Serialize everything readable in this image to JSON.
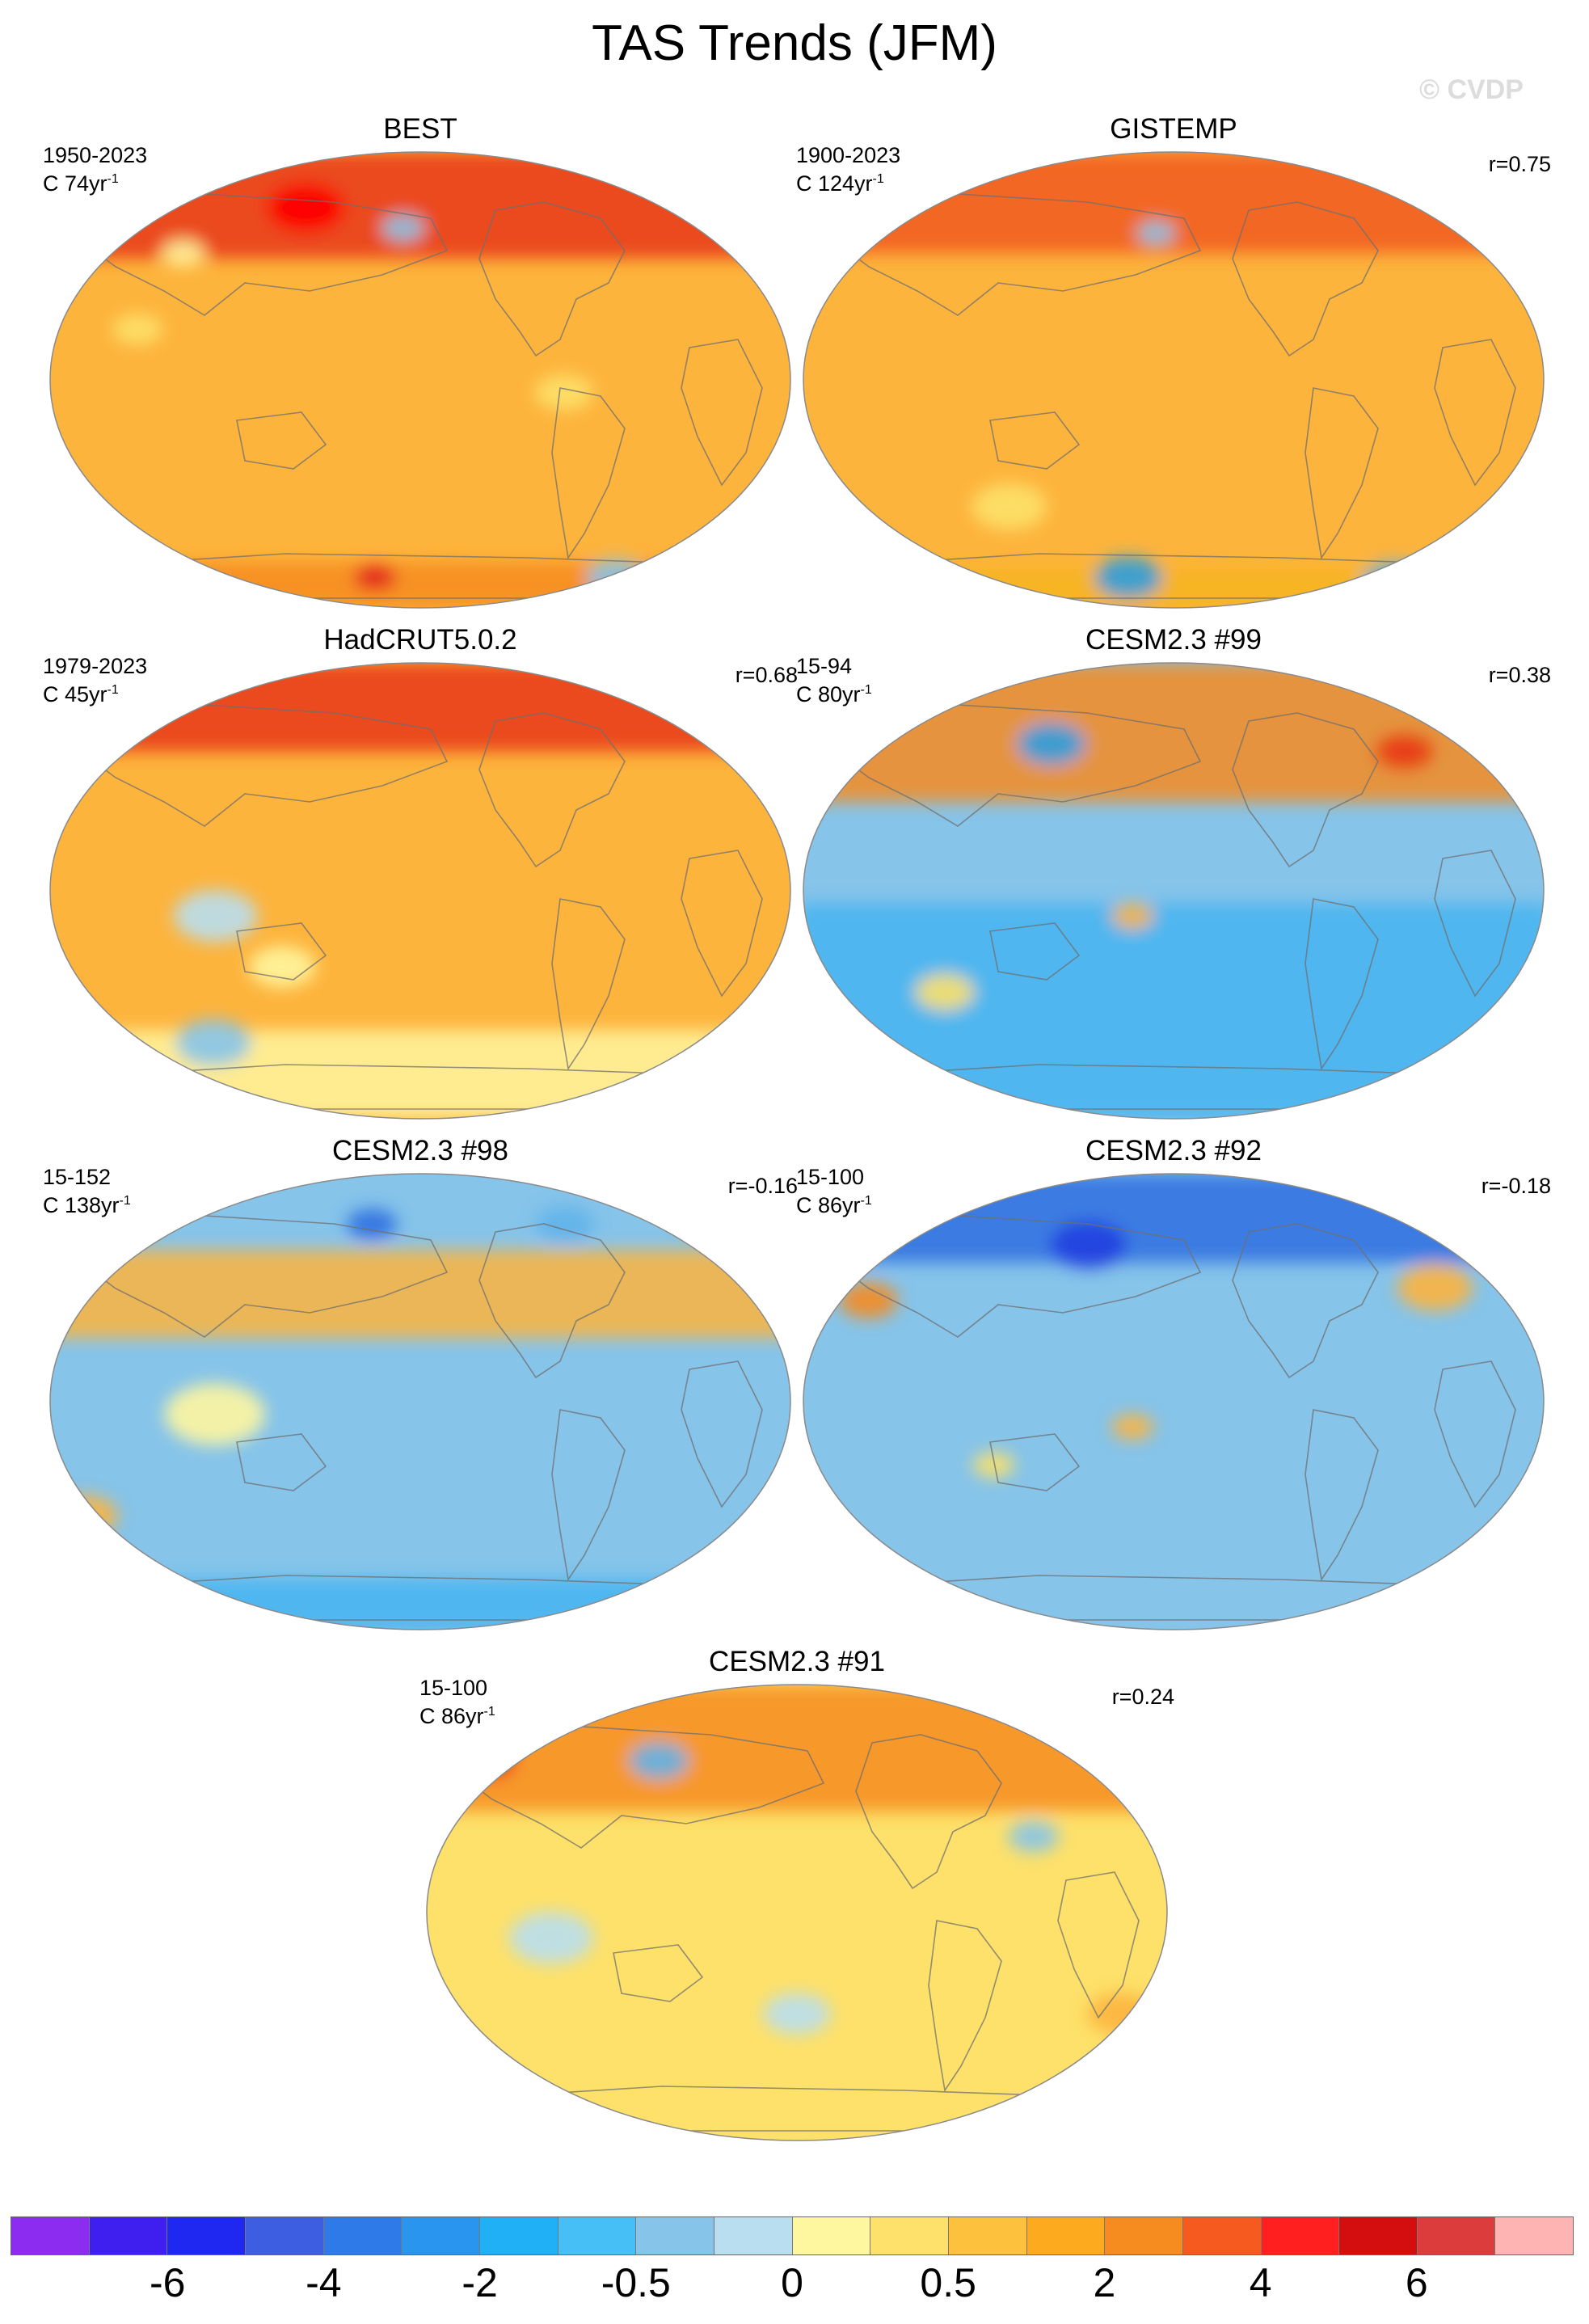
{
  "title": "TAS Trends (JFM)",
  "watermark": "© CVDP",
  "colors": {
    "coastline": "#6f6f6f",
    "map_outline": "#8a8a8a",
    "missing": "#ffffff"
  },
  "panels": [
    {
      "title": "BEST",
      "years": "1950-2023",
      "units": "C 74yr",
      "units_sup": "-1",
      "corr": "",
      "regime": "warm",
      "features": [
        {
          "type": "band",
          "lat_min": 48,
          "lat_max": 90,
          "color": "#e8371a"
        },
        {
          "type": "blob",
          "lon": -100,
          "lat": 68,
          "r": 18,
          "color": "#ff0000"
        },
        {
          "type": "blob",
          "lon": -40,
          "lat": 60,
          "r": 10,
          "color": "#86c4ea"
        },
        {
          "type": "blob",
          "lon": -160,
          "lat": 50,
          "r": 10,
          "color": "#fff6a0"
        },
        {
          "type": "blob",
          "lon": -170,
          "lat": 20,
          "r": 12,
          "color": "#fde16a"
        },
        {
          "type": "blob",
          "lon": 40,
          "lat": -5,
          "r": 14,
          "color": "#fde16a"
        },
        {
          "type": "band",
          "lat_min": -90,
          "lat_max": -72,
          "color": "#f68b1f"
        },
        {
          "type": "blob",
          "lon": -60,
          "lat": -78,
          "r": 10,
          "color": "#e21f1f"
        },
        {
          "type": "blob",
          "lon": 100,
          "lat": -78,
          "r": 14,
          "color": "#86c4ea"
        }
      ]
    },
    {
      "title": "GISTEMP",
      "years": "1900-2023",
      "units": "C 124yr",
      "units_sup": "-1",
      "corr": "r=0.75",
      "regime": "warm",
      "features": [
        {
          "type": "band",
          "lat_min": 50,
          "lat_max": 90,
          "color": "#f05a1e"
        },
        {
          "type": "blob",
          "lon": -40,
          "lat": 58,
          "r": 9,
          "color": "#86c4ea"
        },
        {
          "type": "blob",
          "lon": -120,
          "lat": -50,
          "r": 18,
          "color": "#fde16a"
        },
        {
          "type": "band",
          "lat_min": -90,
          "lat_max": -74,
          "color": "#f6b41f"
        },
        {
          "type": "blob",
          "lon": -60,
          "lat": -78,
          "r": 16,
          "color": "#2e9fe0"
        },
        {
          "type": "blob",
          "lon": 120,
          "lat": -80,
          "r": 16,
          "color": "#5fb2ea"
        }
      ]
    },
    {
      "title": "HadCRUT5.0.2",
      "years": "1979-2023",
      "units": "C 45yr",
      "units_sup": "-1",
      "corr": "r=0.68",
      "regime": "warm",
      "features": [
        {
          "type": "band",
          "lat_min": 55,
          "lat_max": 90,
          "color": "#e8371a"
        },
        {
          "type": "blob",
          "lon": -130,
          "lat": -10,
          "r": 20,
          "color": "#b8def0"
        },
        {
          "type": "blob",
          "lon": -100,
          "lat": -30,
          "r": 16,
          "color": "#fff6a0"
        },
        {
          "type": "band",
          "lat_min": -90,
          "lat_max": -55,
          "color": "#fff6a0"
        },
        {
          "type": "blob",
          "lon": -150,
          "lat": -60,
          "r": 18,
          "color": "#86c4ea"
        }
      ]
    },
    {
      "title": "CESM2.3 #99",
      "years": "15-94",
      "units": "C 80yr",
      "units_sup": "-1",
      "corr": "r=0.38",
      "regime": "mixed",
      "features": [
        {
          "type": "band",
          "lat_min": 35,
          "lat_max": 90,
          "color": "#f68b1f"
        },
        {
          "type": "band",
          "lat_min": -90,
          "lat_max": -5,
          "color": "#45b4f0"
        },
        {
          "type": "blob",
          "lon": -100,
          "lat": 58,
          "r": 16,
          "color": "#2e9fe0"
        },
        {
          "type": "blob",
          "lon": 100,
          "lat": 55,
          "r": 14,
          "color": "#e8371a"
        },
        {
          "type": "blob",
          "lon": -150,
          "lat": -40,
          "r": 14,
          "color": "#fde16a"
        },
        {
          "type": "blob",
          "lon": -50,
          "lat": -10,
          "r": 10,
          "color": "#fdb43d"
        }
      ]
    },
    {
      "title": "CESM2.3 #98",
      "years": "15-152",
      "units": "C 138yr",
      "units_sup": "-1",
      "corr": "r=-0.16",
      "regime": "cool",
      "features": [
        {
          "type": "band",
          "lat_min": 25,
          "lat_max": 60,
          "color": "#fdb43d"
        },
        {
          "type": "blob",
          "lon": 60,
          "lat": 70,
          "r": 14,
          "color": "#5fb2ea"
        },
        {
          "type": "blob",
          "lon": -60,
          "lat": 70,
          "r": 12,
          "color": "#2e6fe0"
        },
        {
          "type": "blob",
          "lon": -130,
          "lat": -5,
          "r": 24,
          "color": "#fff6a0"
        },
        {
          "type": "blob",
          "lon": 150,
          "lat": -45,
          "r": 16,
          "color": "#fdb43d"
        },
        {
          "type": "band",
          "lat_min": -90,
          "lat_max": -70,
          "color": "#45b4f0"
        }
      ]
    },
    {
      "title": "CESM2.3 #92",
      "years": "15-100",
      "units": "C 86yr",
      "units_sup": "-1",
      "corr": "r=-0.18",
      "regime": "cool",
      "features": [
        {
          "type": "band",
          "lat_min": 55,
          "lat_max": 90,
          "color": "#2e6fe0"
        },
        {
          "type": "blob",
          "lon": -80,
          "lat": 62,
          "r": 18,
          "color": "#1f3fe0"
        },
        {
          "type": "blob",
          "lon": 110,
          "lat": 45,
          "r": 18,
          "color": "#fdb43d"
        },
        {
          "type": "blob",
          "lon": 170,
          "lat": 40,
          "r": 14,
          "color": "#f68b1f"
        },
        {
          "type": "blob",
          "lon": -120,
          "lat": -25,
          "r": 10,
          "color": "#fde16a"
        },
        {
          "type": "blob",
          "lon": -50,
          "lat": -10,
          "r": 10,
          "color": "#fdb43d"
        }
      ]
    },
    {
      "title": "CESM2.3 #91",
      "years": "15-100",
      "units": "C 86yr",
      "units_sup": "-1",
      "corr": "r=0.24",
      "regime": "warm-light",
      "features": [
        {
          "type": "band",
          "lat_min": 40,
          "lat_max": 90,
          "color": "#f68b1f"
        },
        {
          "type": "blob",
          "lon": 150,
          "lat": 60,
          "r": 14,
          "color": "#e8371a"
        },
        {
          "type": "blob",
          "lon": -110,
          "lat": 60,
          "r": 14,
          "color": "#5fb2ea"
        },
        {
          "type": "blob",
          "lon": 90,
          "lat": 30,
          "r": 12,
          "color": "#86c4ea"
        },
        {
          "type": "blob",
          "lon": -150,
          "lat": -10,
          "r": 20,
          "color": "#b8def0"
        },
        {
          "type": "blob",
          "lon": -30,
          "lat": -40,
          "r": 16,
          "color": "#b8def0"
        },
        {
          "type": "blob",
          "lon": 140,
          "lat": -40,
          "r": 16,
          "color": "#fdb43d"
        }
      ]
    }
  ],
  "colorbar": {
    "colors": [
      "#8b2cf0",
      "#3f1ff0",
      "#1f28f0",
      "#3d5ee0",
      "#2e7ae8",
      "#2a95ee",
      "#1fb0f5",
      "#45bff5",
      "#86c4ea",
      "#b8def0",
      "#fff6a0",
      "#fde16a",
      "#fdc13d",
      "#fdaa1f",
      "#f68b1f",
      "#f65a1e",
      "#ff1f1f",
      "#d40e0e",
      "#dd3c3c",
      "#ffb4b4"
    ],
    "labels": [
      "-6",
      "-4",
      "-2",
      "-0.5",
      "0",
      "0.5",
      "2",
      "4",
      "6"
    ],
    "label_after_boundary": [
      1,
      3,
      5,
      7,
      9,
      11,
      13,
      15,
      17
    ]
  }
}
